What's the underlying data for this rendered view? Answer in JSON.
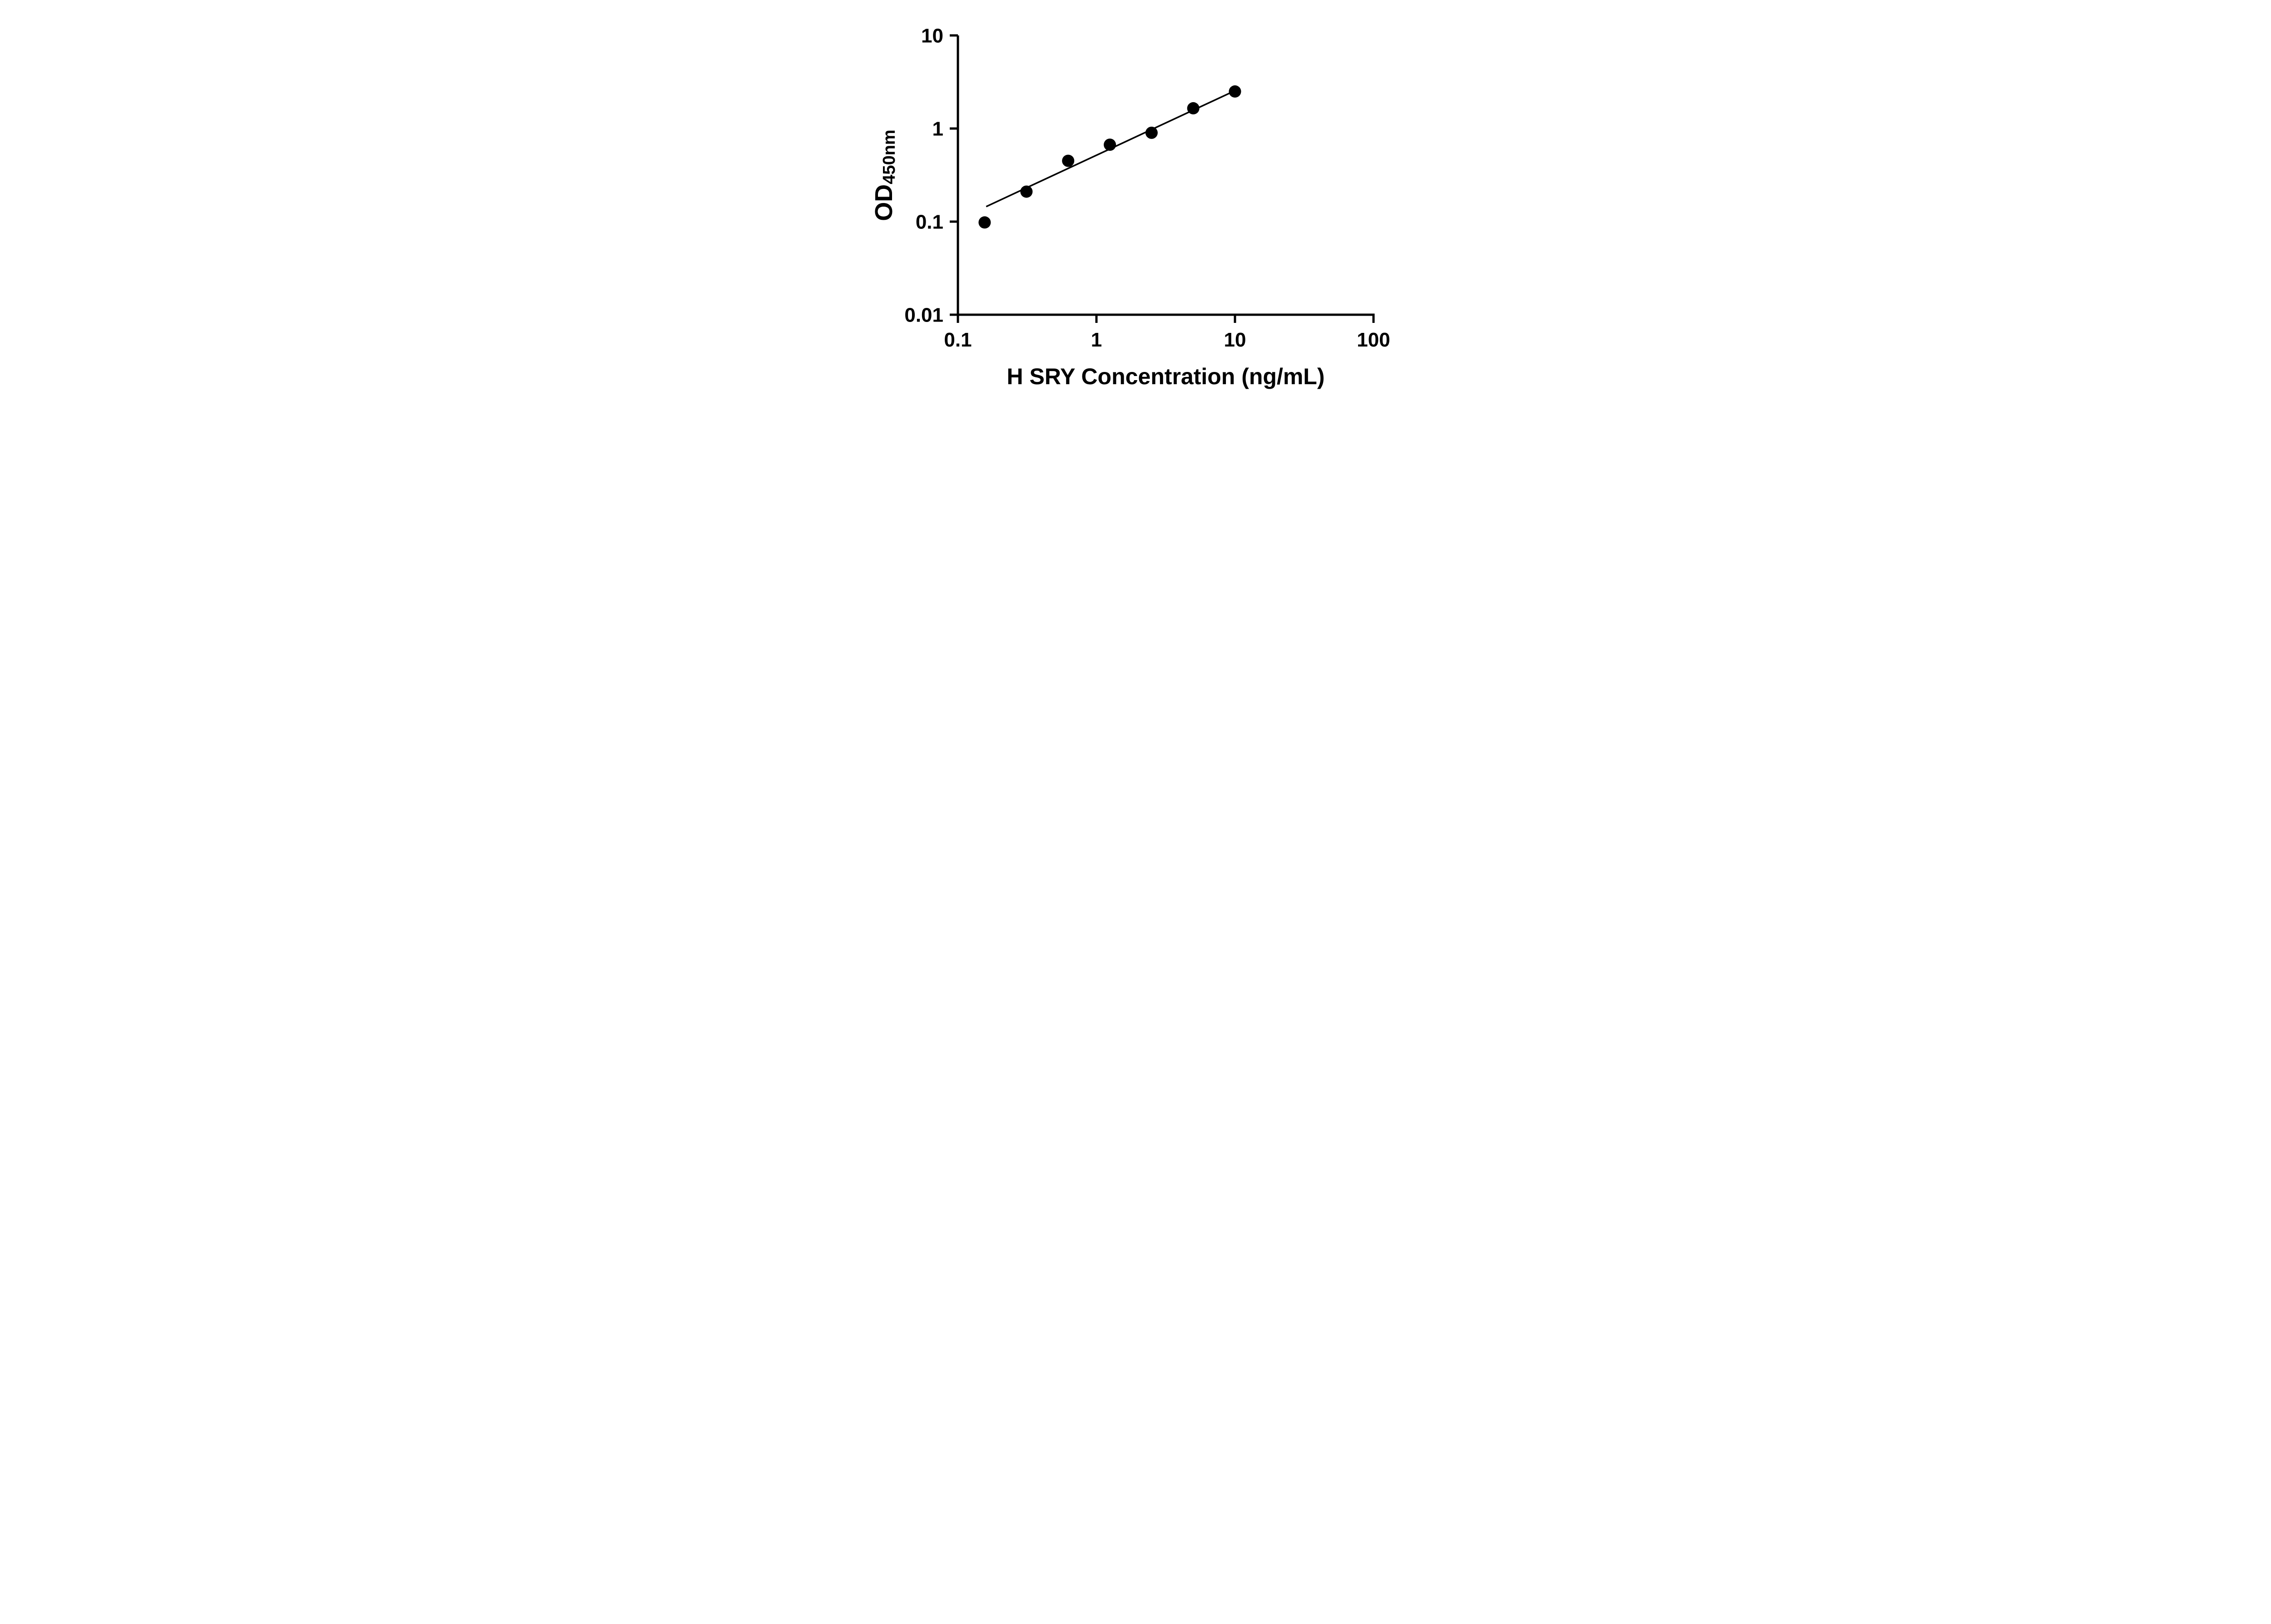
{
  "chart_data": {
    "type": "scatter",
    "title": "",
    "xlabel": "H SRY Concentration (ng/mL)",
    "ylabel_main": "OD",
    "ylabel_sub": "450nm",
    "x_scale": "log",
    "y_scale": "log",
    "xlim": [
      0.1,
      100
    ],
    "ylim": [
      0.01,
      10
    ],
    "x_ticks": [
      0.1,
      1,
      10,
      100
    ],
    "x_tick_labels": [
      "0.1",
      "1",
      "10",
      "100"
    ],
    "y_ticks": [
      0.01,
      0.1,
      1,
      10
    ],
    "y_tick_labels": [
      "0.01",
      "0.1",
      "1",
      "10"
    ],
    "grid": false,
    "legend": null,
    "marker_color": "#000000",
    "line_color": "#000000",
    "background_color": "#ffffff",
    "points": [
      {
        "x": 0.156,
        "y": 0.098
      },
      {
        "x": 0.3125,
        "y": 0.21
      },
      {
        "x": 0.625,
        "y": 0.45
      },
      {
        "x": 1.25,
        "y": 0.67
      },
      {
        "x": 2.5,
        "y": 0.9
      },
      {
        "x": 5.0,
        "y": 1.65
      },
      {
        "x": 10.0,
        "y": 2.5
      }
    ],
    "trendline": {
      "x1": 0.16,
      "y1": 0.145,
      "x2": 10.0,
      "y2": 2.55
    }
  }
}
